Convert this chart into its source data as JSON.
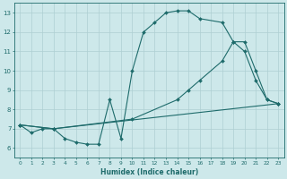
{
  "xlabel": "Humidex (Indice chaleur)",
  "xlim": [
    -0.5,
    23.5
  ],
  "ylim": [
    5.5,
    13.5
  ],
  "xticks": [
    0,
    1,
    2,
    3,
    4,
    5,
    6,
    7,
    8,
    9,
    10,
    11,
    12,
    13,
    14,
    15,
    16,
    17,
    18,
    19,
    20,
    21,
    22,
    23
  ],
  "yticks": [
    6,
    7,
    8,
    9,
    10,
    11,
    12,
    13
  ],
  "bg_color": "#cde8ea",
  "grid_color": "#aecfd2",
  "line_color": "#1e6b6b",
  "line1_x": [
    0,
    1,
    2,
    3,
    4,
    5,
    6,
    7,
    8,
    9,
    10,
    11,
    12,
    13,
    14,
    15,
    16,
    18,
    19,
    20,
    21,
    22,
    23
  ],
  "line1_y": [
    7.2,
    6.8,
    7.0,
    7.0,
    6.5,
    6.3,
    6.2,
    6.2,
    8.5,
    6.5,
    10.0,
    12.0,
    12.5,
    13.0,
    13.1,
    13.1,
    12.7,
    12.5,
    11.5,
    11.0,
    9.5,
    8.5,
    8.3
  ],
  "line2_x": [
    0,
    3,
    10,
    14,
    15,
    16,
    18,
    19,
    20,
    21,
    22,
    23
  ],
  "line2_y": [
    7.2,
    7.0,
    7.5,
    8.5,
    9.0,
    9.5,
    10.5,
    11.5,
    11.5,
    10.0,
    8.5,
    8.3
  ],
  "line3_x": [
    0,
    3,
    23
  ],
  "line3_y": [
    7.2,
    7.0,
    8.3
  ],
  "figsize": [
    3.2,
    2.0
  ],
  "dpi": 100
}
